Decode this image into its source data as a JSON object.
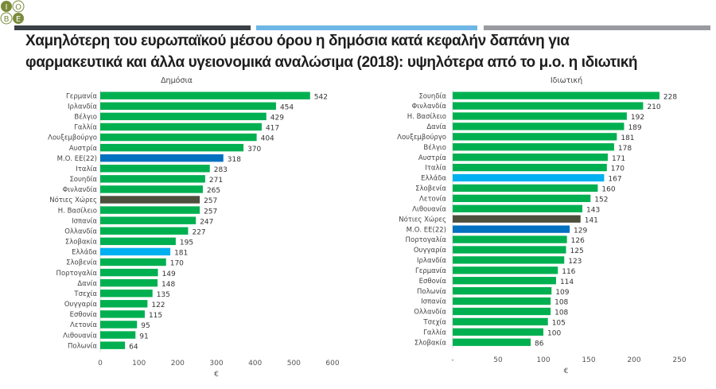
{
  "logo_text": "ΙΟΒΕ",
  "title_line1": "Χαμηλότερη του ευρωπαϊκού μέσου όρου η δημόσια κατά κεφαλήν δαπάνη για",
  "title_line2": "φαρμακευτικά και άλλα υγειονομικά αναλώσιμα (2018): υψηλότερα από το μ.ο. η ιδιωτική",
  "colors": {
    "green": "#00b050",
    "eu_avg": "#0070c0",
    "greece": "#00b0f0",
    "south": "#4d4f3c"
  },
  "chart_data": [
    {
      "type": "bar",
      "title": "Δημόσια",
      "xlabel": "€",
      "xlim": [
        0,
        600
      ],
      "ticks": [
        "0",
        "100",
        "200",
        "300",
        "400",
        "500",
        "600"
      ],
      "tick_values": [
        0,
        100,
        200,
        300,
        400,
        500,
        600
      ],
      "categories": [
        "Γερμανία",
        "Ιρλανδία",
        "Βέλγιο",
        "Γαλλία",
        "Λουξεμβούργο",
        "Αυστρία",
        "Μ.Ο. ΕΕ(22)",
        "Ιταλία",
        "Σουηδία",
        "Φινλανδία",
        "Νότιες Χώρες",
        "Η. Βασίλειο",
        "Ισπανία",
        "Ολλανδία",
        "Σλοβακία",
        "Ελλάδα",
        "Σλοβενία",
        "Πορτογαλία",
        "Δανία",
        "Τσεχία",
        "Ουγγαρία",
        "Εσθονία",
        "Λετονία",
        "Λιθουανία",
        "Πολωνία"
      ],
      "values": [
        542,
        454,
        429,
        417,
        404,
        370,
        318,
        283,
        271,
        265,
        257,
        257,
        247,
        227,
        195,
        181,
        170,
        149,
        148,
        135,
        122,
        115,
        95,
        91,
        64
      ]
    },
    {
      "type": "bar",
      "title": "Ιδιωτική",
      "xlabel": "€",
      "xlim": [
        0,
        250
      ],
      "ticks": [
        "-",
        "50",
        "100",
        "150",
        "200",
        "250"
      ],
      "tick_values": [
        0,
        50,
        100,
        150,
        200,
        250
      ],
      "categories": [
        "Σουηδία",
        "Φινλανδία",
        "Η. Βασίλειο",
        "Δανία",
        "Λουξεμβούργο",
        "Βέλγιο",
        "Αυστρία",
        "Ιταλία",
        "Ελλάδα",
        "Σλοβενία",
        "Λετονία",
        "Λιθουανία",
        "Νότιες Χώρες",
        "Μ.Ο. ΕΕ(22)",
        "Πορτογαλία",
        "Ουγγαρία",
        "Ιρλανδία",
        "Γερμανία",
        "Εσθονία",
        "Πολωνία",
        "Ισπανία",
        "Ολλανδία",
        "Τσεχία",
        "Γαλλία",
        "Σλοβακία"
      ],
      "values": [
        228,
        210,
        192,
        189,
        181,
        178,
        171,
        170,
        167,
        160,
        152,
        143,
        141,
        129,
        126,
        125,
        123,
        116,
        114,
        109,
        108,
        108,
        105,
        100,
        86
      ]
    }
  ]
}
